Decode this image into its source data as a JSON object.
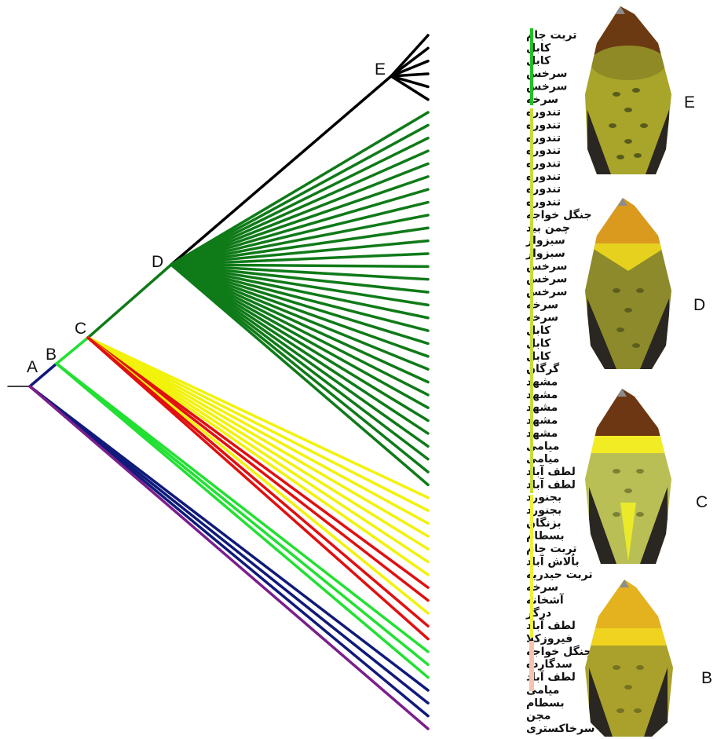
{
  "nodes": [
    "A",
    "B",
    "C",
    "D",
    "E"
  ],
  "colors": {
    "purple": "#7a1f8c",
    "navy": "#101a7a",
    "lightgreen": "#22e033",
    "red": "#e01010",
    "yellow": "#f2f20a",
    "darkgreen": "#0f7a18",
    "black": "#000000",
    "bar_green": "#1fc21f",
    "bar_lime": "#c8dc37",
    "bar_yellow": "#eef03a",
    "bar_peach": "#f5c4ae"
  },
  "leaves": [
    {
      "label": "تربت جام",
      "group": "E"
    },
    {
      "label": "کابل",
      "group": "E"
    },
    {
      "label": "کابل",
      "group": "E"
    },
    {
      "label": "سرخس",
      "group": "E"
    },
    {
      "label": "سرخس",
      "group": "E"
    },
    {
      "label": "سرخه",
      "group": "E"
    },
    {
      "label": "تندوره",
      "group": "D"
    },
    {
      "label": "تندوره",
      "group": "D"
    },
    {
      "label": "تندوره",
      "group": "D"
    },
    {
      "label": "تندوره",
      "group": "D"
    },
    {
      "label": "تندوره",
      "group": "D"
    },
    {
      "label": "تندوره",
      "group": "D"
    },
    {
      "label": "تندوره",
      "group": "D"
    },
    {
      "label": "تندوره",
      "group": "D"
    },
    {
      "label": "جنگل خواجه",
      "group": "D"
    },
    {
      "label": "چمن بید",
      "group": "D"
    },
    {
      "label": "سبزوار",
      "group": "D"
    },
    {
      "label": "سبزوار",
      "group": "D"
    },
    {
      "label": "سرخس",
      "group": "D"
    },
    {
      "label": "سرخس",
      "group": "D"
    },
    {
      "label": "سرخس",
      "group": "D"
    },
    {
      "label": "سرخه",
      "group": "D"
    },
    {
      "label": "سرخه",
      "group": "D"
    },
    {
      "label": "کابل",
      "group": "D"
    },
    {
      "label": "کابل",
      "group": "D"
    },
    {
      "label": "کابل",
      "group": "D"
    },
    {
      "label": "گرگان",
      "group": "D"
    },
    {
      "label": "مشهد",
      "group": "D"
    },
    {
      "label": "مشهد",
      "group": "D"
    },
    {
      "label": "مشهد",
      "group": "D"
    },
    {
      "label": "مشهد",
      "group": "D"
    },
    {
      "label": "مشهد",
      "group": "D"
    },
    {
      "label": "میامی",
      "group": "D"
    },
    {
      "label": "میامی",
      "group": "D"
    },
    {
      "label": "لطف آباد",
      "group": "D"
    },
    {
      "label": "لطف آباد",
      "group": "D"
    },
    {
      "label": "بجنورد",
      "group": "C"
    },
    {
      "label": "بجنورد",
      "group": "C"
    },
    {
      "label": "بزنگان",
      "group": "C"
    },
    {
      "label": "بسطام",
      "group": "C"
    },
    {
      "label": "تربت جام",
      "group": "C"
    },
    {
      "label": "باُلاش آباد",
      "group": "C"
    },
    {
      "label": "تربت حیدریه",
      "group": "C"
    },
    {
      "label": "سرخه",
      "group": "C"
    },
    {
      "label": "آشخانه",
      "group": "C"
    },
    {
      "label": "درگز",
      "group": "C"
    },
    {
      "label": "لطف آباد",
      "group": "C"
    },
    {
      "label": "فیروزکلا",
      "group": "C"
    },
    {
      "label": "جنگل خواجه",
      "group": "B"
    },
    {
      "label": "سدگارده",
      "group": "B"
    },
    {
      "label": "لطف آباد",
      "group": "B"
    },
    {
      "label": "میامی",
      "group": "A"
    },
    {
      "label": "بسطام",
      "group": "A"
    },
    {
      "label": "مجن",
      "group": "A"
    },
    {
      "label": "زردپره سرخاکستری",
      "group": "A"
    }
  ],
  "bird_tags": [
    "E",
    "D",
    "C",
    "B"
  ]
}
